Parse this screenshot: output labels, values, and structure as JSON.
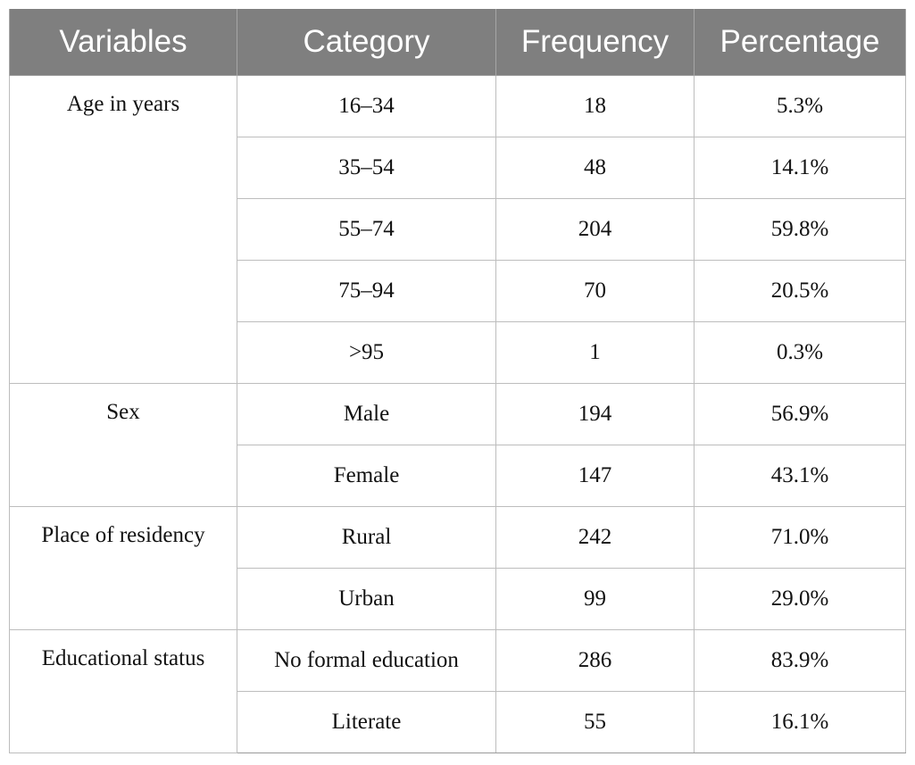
{
  "table": {
    "headers": [
      "Variables",
      "Category",
      "Frequency",
      "Percentage"
    ],
    "groups": [
      {
        "variable": "Age in years",
        "rows": [
          {
            "category": "16–34",
            "frequency": "18",
            "percentage": "5.3%"
          },
          {
            "category": "35–54",
            "frequency": "48",
            "percentage": "14.1%"
          },
          {
            "category": "55–74",
            "frequency": "204",
            "percentage": "59.8%"
          },
          {
            "category": "75–94",
            "frequency": "70",
            "percentage": "20.5%"
          },
          {
            "category": ">95",
            "frequency": "1",
            "percentage": "0.3%"
          }
        ]
      },
      {
        "variable": "Sex",
        "rows": [
          {
            "category": "Male",
            "frequency": "194",
            "percentage": "56.9%"
          },
          {
            "category": "Female",
            "frequency": "147",
            "percentage": "43.1%"
          }
        ]
      },
      {
        "variable": "Place of residency",
        "rows": [
          {
            "category": "Rural",
            "frequency": "242",
            "percentage": "71.0%"
          },
          {
            "category": "Urban",
            "frequency": "99",
            "percentage": "29.0%"
          }
        ]
      },
      {
        "variable": "Educational status",
        "rows": [
          {
            "category": "No formal education",
            "frequency": "286",
            "percentage": "83.9%"
          },
          {
            "category": "Literate",
            "frequency": "55",
            "percentage": "16.1%"
          }
        ]
      }
    ]
  }
}
